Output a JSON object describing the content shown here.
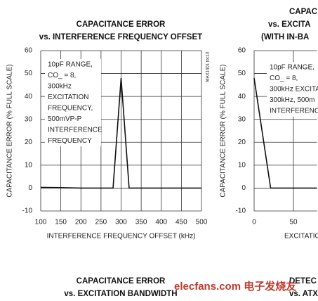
{
  "chart_data": [
    {
      "type": "line",
      "title": [
        "CAPACITANCE ERROR",
        "vs. INTERFERENCE FREQUENCY OFFSET"
      ],
      "ylabel": "CAPACITANCE ERROR (% FULL SCALE)",
      "xlabel": "INTERFERENCE FREQUENCY OFFSET (kHz)",
      "side_note": "MAX1401 toc10",
      "annotation": [
        "10pF RANGE,",
        "CO_ = 8,",
        "300kHz",
        "EXCITATION",
        "FREQUENCY,",
        "500mVP-P",
        "INTERFERENCE",
        "FREQUENCY"
      ],
      "xlim": [
        100,
        500
      ],
      "xticks": [
        100,
        150,
        200,
        250,
        300,
        350,
        400,
        450,
        500
      ],
      "ylim": [
        -10,
        60
      ],
      "yticks": [
        -10,
        0,
        10,
        20,
        30,
        40,
        50,
        60
      ],
      "grid": true,
      "series": [
        {
          "color": "#111111",
          "x": [
            100,
            150,
            200,
            280,
            300,
            320,
            500
          ],
          "values": [
            0.3,
            0.2,
            0,
            0,
            48,
            0,
            0
          ]
        }
      ]
    },
    {
      "type": "line",
      "title": [
        "CAPAC",
        "vs. EXCITA",
        "(WITH IN-BA"
      ],
      "ylabel": "CAPACITANCE ERROR (% FULL SCALE)",
      "xlabel": "EXCITATIO",
      "annotation": [
        "10pF RANGE,",
        "CO_ = 8,",
        "300kHz EXCITA",
        "300kHz, 500m",
        "INTERFERENC"
      ],
      "xlim": [
        0,
        80
      ],
      "xticks": [
        0,
        50
      ],
      "ylim": [
        -10,
        60
      ],
      "yticks": [
        -10,
        0,
        10,
        20,
        30,
        40,
        50,
        60
      ],
      "grid": true,
      "series": [
        {
          "color": "#111111",
          "x": [
            0,
            21,
            80
          ],
          "values": [
            48,
            0,
            0
          ]
        }
      ]
    }
  ],
  "bottom_titles": [
    [
      "CAPACITANCE ERROR",
      "vs. EXCITATION BANDWIDTH"
    ],
    [
      "DETEC",
      "vs. ATXH F"
    ]
  ],
  "watermark": "elecfans.com 电子发烧友"
}
